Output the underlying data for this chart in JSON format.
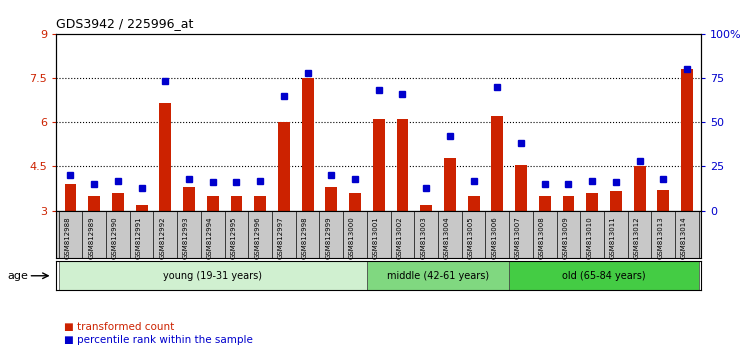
{
  "title": "GDS3942 / 225996_at",
  "samples": [
    "GSM812988",
    "GSM812989",
    "GSM812990",
    "GSM812991",
    "GSM812992",
    "GSM812993",
    "GSM812994",
    "GSM812995",
    "GSM812996",
    "GSM812997",
    "GSM812998",
    "GSM812999",
    "GSM813000",
    "GSM813001",
    "GSM813002",
    "GSM813003",
    "GSM813004",
    "GSM813005",
    "GSM813006",
    "GSM813007",
    "GSM813008",
    "GSM813009",
    "GSM813010",
    "GSM813011",
    "GSM813012",
    "GSM813013",
    "GSM813014"
  ],
  "red_values": [
    3.9,
    3.5,
    3.6,
    3.2,
    6.65,
    3.8,
    3.5,
    3.5,
    3.5,
    6.0,
    7.48,
    3.8,
    3.6,
    6.1,
    6.1,
    3.2,
    4.8,
    3.5,
    6.2,
    4.55,
    3.5,
    3.5,
    3.6,
    3.65,
    4.5,
    3.7,
    7.8
  ],
  "blue_values": [
    20,
    15,
    17,
    13,
    73,
    18,
    16,
    16,
    17,
    65,
    78,
    20,
    18,
    68,
    66,
    13,
    42,
    17,
    70,
    38,
    15,
    15,
    17,
    16,
    28,
    18,
    80
  ],
  "groups": [
    {
      "label": "young (19-31 years)",
      "start": 0,
      "end": 13,
      "color": "#d0f0d0"
    },
    {
      "label": "middle (42-61 years)",
      "start": 13,
      "end": 19,
      "color": "#80d880"
    },
    {
      "label": "old (65-84 years)",
      "start": 19,
      "end": 27,
      "color": "#44cc44"
    }
  ],
  "ylim_left": [
    3,
    9
  ],
  "ylim_right": [
    0,
    100
  ],
  "yticks_left": [
    3,
    4.5,
    6,
    7.5,
    9
  ],
  "ytick_labels_left": [
    "3",
    "4.5",
    "6",
    "7.5",
    "9"
  ],
  "yticks_right": [
    0,
    25,
    50,
    75,
    100
  ],
  "ytick_labels_right": [
    "0",
    "25",
    "50",
    "75",
    "100%"
  ],
  "bar_color": "#cc2200",
  "dot_color": "#0000cc",
  "plot_bg": "#ffffff",
  "xtick_bg": "#c8c8c8",
  "age_label": "age",
  "legend": [
    "transformed count",
    "percentile rank within the sample"
  ],
  "bar_width": 0.5
}
